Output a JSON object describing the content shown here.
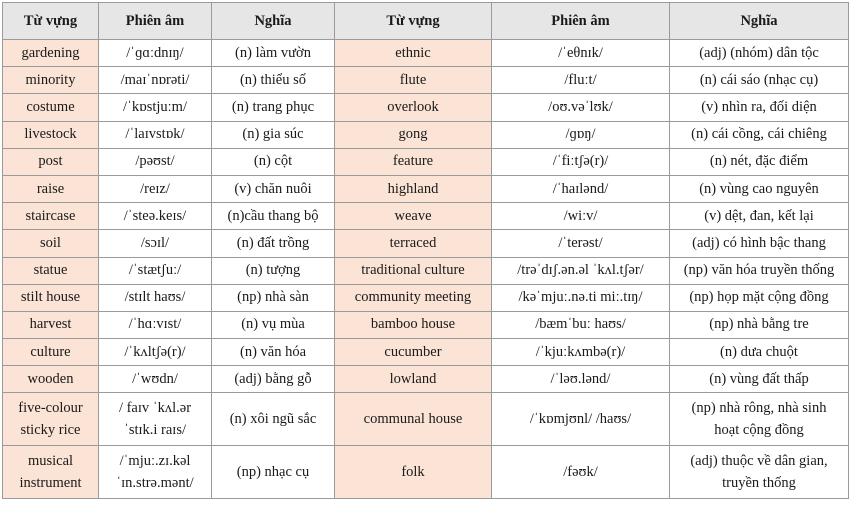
{
  "headers": [
    "Từ vựng",
    "Phiên âm",
    "Nghĩa",
    "Từ vựng",
    "Phiên âm",
    "Nghĩa"
  ],
  "rows": [
    {
      "left": {
        "word": "gardening",
        "ipa": "/ˈɡɑːdnɪŋ/",
        "meaning": "(n) làm vườn"
      },
      "right": {
        "word": "ethnic",
        "ipa": "/ˈeθnɪk/",
        "meaning": "(adj) (nhóm) dân tộc"
      }
    },
    {
      "left": {
        "word": "minority",
        "ipa": "/maɪˈnɒrəti/",
        "meaning": "(n) thiểu số"
      },
      "right": {
        "word": "flute",
        "ipa": "/fluːt/",
        "meaning": "(n) cái sáo (nhạc cụ)"
      }
    },
    {
      "left": {
        "word": "costume",
        "ipa": "/ˈkɒstjuːm/",
        "meaning": "(n) trang phục"
      },
      "right": {
        "word": "overlook",
        "ipa": "/oʊ.vəˈlʊk/",
        "meaning": "(v) nhìn ra, đối diện"
      }
    },
    {
      "left": {
        "word": "livestock",
        "ipa": "/ˈlaɪvstɒk/",
        "meaning": "(n) gia súc"
      },
      "right": {
        "word": "gong",
        "ipa": "/ɡɒŋ/",
        "meaning": "(n) cái cồng, cái chiêng"
      }
    },
    {
      "left": {
        "word": "post",
        "ipa": "/pəʊst/",
        "meaning": "(n) cột"
      },
      "right": {
        "word": "feature",
        "ipa": "/ˈfiːtʃə(r)/",
        "meaning": "(n) nét, đặc điểm"
      }
    },
    {
      "left": {
        "word": "raise",
        "ipa": "/reɪz/",
        "meaning": "(v) chăn nuôi"
      },
      "right": {
        "word": "highland",
        "ipa": "/ˈhaɪlənd/",
        "meaning": "(n) vùng cao nguyên"
      }
    },
    {
      "left": {
        "word": "staircase",
        "ipa": "/ˈsteə.keɪs/",
        "meaning": "(n)cầu thang bộ"
      },
      "right": {
        "word": "weave",
        "ipa": "/wiːv/",
        "meaning": "(v) dệt, đan, kết lại"
      }
    },
    {
      "left": {
        "word": "soil",
        "ipa": "/sɔɪl/",
        "meaning": "(n) đất trồng"
      },
      "right": {
        "word": "terraced",
        "ipa": "/ˈterəst/",
        "meaning": "(adj) có hình bậc thang"
      }
    },
    {
      "left": {
        "word": "statue",
        "ipa": "/ˈstætʃuː/",
        "meaning": "(n) tượng"
      },
      "right": {
        "word": "traditional culture",
        "ipa": "/trəˈdɪʃ.ən.əl ˈkʌl.tʃər/",
        "meaning": "(np) văn hóa truyền thống"
      }
    },
    {
      "left": {
        "word": "stilt house",
        "ipa": "/stɪlt haʊs/",
        "meaning": "(np) nhà sàn"
      },
      "right": {
        "word": "community meeting",
        "ipa": "/kəˈmjuː.nə.ti miː.tɪŋ/",
        "meaning": "(np) họp mặt cộng đồng"
      }
    },
    {
      "left": {
        "word": "harvest",
        "ipa": "/ˈhɑːvɪst/",
        "meaning": "(n) vụ mùa"
      },
      "right": {
        "word": "bamboo house",
        "ipa": "/bæmˈbuː haʊs/",
        "meaning": "(np) nhà bằng tre"
      }
    },
    {
      "left": {
        "word": "culture",
        "ipa": "/ˈkʌltʃə(r)/",
        "meaning": "(n) văn hóa"
      },
      "right": {
        "word": "cucumber",
        "ipa": "/ˈkjuːkʌmbə(r)/",
        "meaning": "(n) dưa chuột"
      }
    },
    {
      "left": {
        "word": "wooden",
        "ipa": "/ˈwʊdn/",
        "meaning": "(adj) bằng gỗ"
      },
      "right": {
        "word": "lowland",
        "ipa": "/ˈləʊ.lənd/",
        "meaning": "(n) vùng đất thấp"
      }
    }
  ],
  "tall_rows": [
    {
      "left": {
        "word_lines": [
          "five-colour",
          "sticky rice"
        ],
        "ipa_lines": [
          "/ faɪv ˈkʌl.ər",
          "ˈstɪk.i raɪs/"
        ],
        "meaning": "(n) xôi ngũ sắc"
      },
      "right": {
        "word": "communal house",
        "ipa": "/ˈkɒmjʊnl/ /haʊs/",
        "meaning_lines": [
          "(np) nhà rông, nhà sinh",
          "hoạt cộng đồng"
        ]
      }
    },
    {
      "left": {
        "word_lines": [
          "musical",
          "instrument"
        ],
        "ipa_lines": [
          "/ˈmjuː.zɪ.kəl",
          "ˈɪn.strə.mənt/"
        ],
        "meaning": "(np) nhạc cụ"
      },
      "right": {
        "word": "folk",
        "ipa": "/fəʊk/",
        "meaning_lines": [
          "(adj) thuộc về dân gian,",
          "truyền thống"
        ]
      }
    }
  ]
}
